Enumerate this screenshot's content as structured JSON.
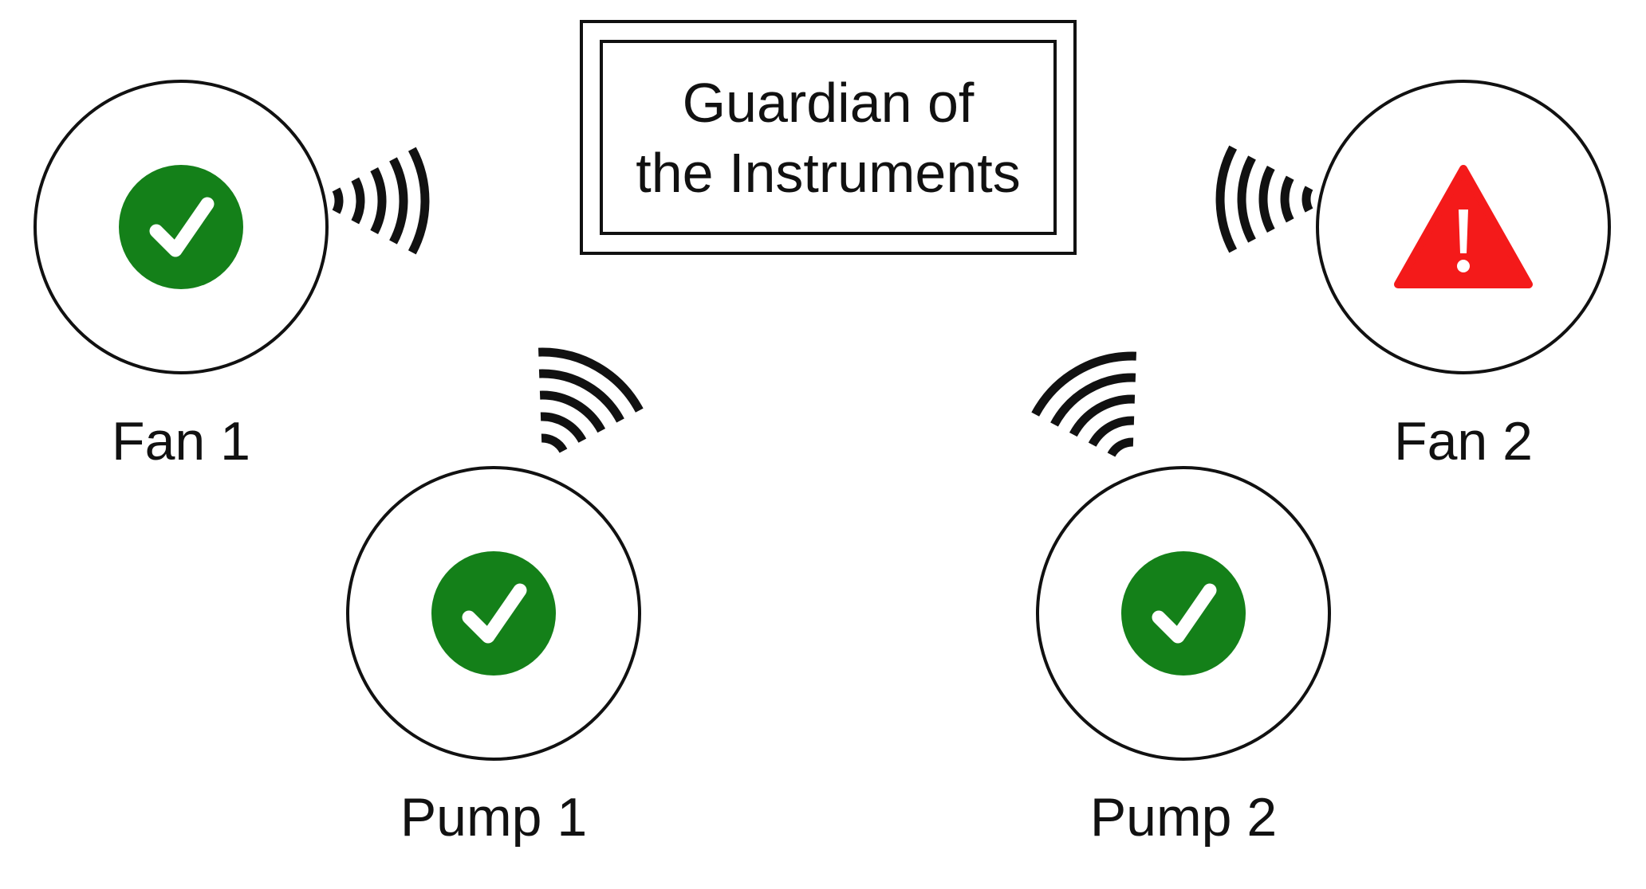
{
  "title": {
    "line1": "Guardian of",
    "line2": "the Instruments"
  },
  "devices": [
    {
      "id": "fan-1",
      "label": "Fan 1",
      "status": "ok",
      "icon": "checkmark-icon"
    },
    {
      "id": "pump-1",
      "label": "Pump 1",
      "status": "ok",
      "icon": "checkmark-icon"
    },
    {
      "id": "pump-2",
      "label": "Pump 2",
      "status": "ok",
      "icon": "checkmark-icon"
    },
    {
      "id": "fan-2",
      "label": "Fan 2",
      "status": "warning",
      "icon": "warning-icon"
    }
  ],
  "colors": {
    "ok": "#148019",
    "warning": "#f41a1a",
    "outline": "#111111",
    "signal": "#111111"
  },
  "signal_icon": "wireless-signal-icon"
}
